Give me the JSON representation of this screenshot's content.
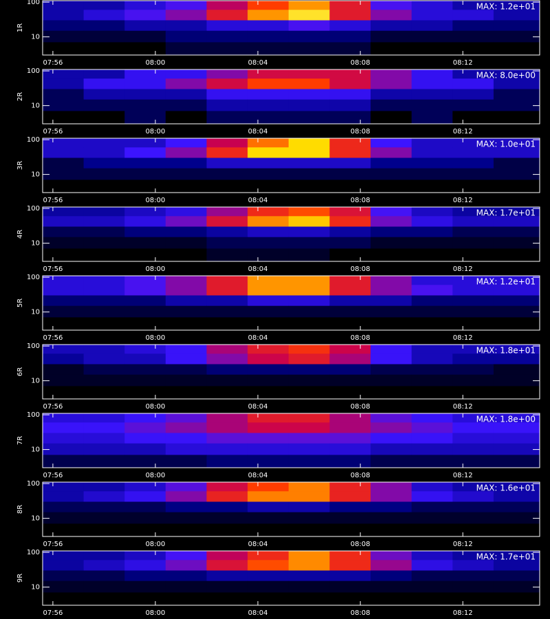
{
  "chart_data": [
    {
      "type": "heatmap",
      "ylabel": "1R",
      "zmax": 12,
      "zmax_label": "MAX: 1.2e+01",
      "log": true,
      "ylim": [
        3,
        110
      ],
      "yticks": [
        10,
        100
      ],
      "xlim": [
        475.6,
        495.0
      ],
      "xticks": [
        {
          "value": 476,
          "label": "07:56"
        },
        {
          "value": 480,
          "label": "08:00"
        },
        {
          "value": 484,
          "label": "08:04"
        },
        {
          "value": 488,
          "label": "08:08"
        },
        {
          "value": 492,
          "label": "08:12"
        }
      ],
      "x_bins": [
        475.6,
        477.2,
        478.8,
        480.4,
        482.0,
        483.6,
        485.2,
        486.8,
        488.4,
        490.0,
        491.6,
        493.2,
        495.0
      ],
      "y_bins": [
        110,
        60,
        30,
        15,
        7,
        3
      ],
      "z": [
        [
          3,
          3,
          4,
          5,
          7,
          9,
          10,
          8,
          5,
          4,
          3,
          3
        ],
        [
          3,
          4,
          5,
          6,
          8,
          10,
          11,
          8,
          6,
          4,
          4,
          3
        ],
        [
          2,
          2,
          3,
          3,
          4,
          4,
          5,
          4,
          3,
          3,
          2,
          2
        ],
        [
          1,
          1,
          1,
          2,
          2,
          2,
          2,
          2,
          1,
          1,
          1,
          1
        ],
        [
          0,
          0,
          0,
          1,
          1,
          1,
          1,
          1,
          0,
          0,
          0,
          0
        ]
      ]
    },
    {
      "type": "heatmap",
      "ylabel": "2R",
      "zmax": 8,
      "zmax_label": "MAX: 8.0e+00",
      "log": true,
      "ylim": [
        3,
        110
      ],
      "yticks": [
        10,
        100
      ],
      "xlim": [
        475.6,
        495.0
      ],
      "xticks": [
        {
          "value": 476,
          "label": "07:56"
        },
        {
          "value": 480,
          "label": "08:00"
        },
        {
          "value": 484,
          "label": "08:04"
        },
        {
          "value": 488,
          "label": "08:08"
        },
        {
          "value": 492,
          "label": "08:12"
        }
      ],
      "x_bins": [
        475.6,
        477.2,
        478.8,
        480.4,
        482.0,
        483.6,
        485.2,
        486.8,
        488.4,
        490.0,
        491.6,
        493.2,
        495.0
      ],
      "y_bins": [
        110,
        60,
        30,
        15,
        7,
        3
      ],
      "z": [
        [
          2,
          2,
          3,
          3,
          4,
          5,
          5,
          5,
          4,
          3,
          2,
          2
        ],
        [
          2,
          3,
          3,
          4,
          5,
          6,
          6,
          5,
          4,
          3,
          3,
          2
        ],
        [
          1,
          2,
          2,
          2,
          3,
          3,
          3,
          3,
          2,
          2,
          2,
          1
        ],
        [
          1,
          1,
          1,
          1,
          2,
          2,
          2,
          2,
          1,
          1,
          1,
          1
        ],
        [
          0,
          0,
          1,
          0,
          1,
          1,
          1,
          1,
          0,
          1,
          0,
          0
        ]
      ]
    },
    {
      "type": "heatmap",
      "ylabel": "3R",
      "zmax": 10,
      "zmax_label": "MAX: 1.0e+01",
      "log": true,
      "ylim": [
        3,
        110
      ],
      "yticks": [
        10,
        100
      ],
      "xlim": [
        475.6,
        495.0
      ],
      "xticks": [
        {
          "value": 476,
          "label": "07:56"
        },
        {
          "value": 480,
          "label": "08:00"
        },
        {
          "value": 484,
          "label": "08:04"
        },
        {
          "value": 488,
          "label": "08:08"
        },
        {
          "value": 492,
          "label": "08:12"
        }
      ],
      "x_bins": [
        475.6,
        477.2,
        478.8,
        480.4,
        482.0,
        483.6,
        485.2,
        486.8,
        488.4,
        490.0,
        491.6,
        493.2,
        495.0
      ],
      "y_bins": [
        110,
        60,
        30,
        15,
        7,
        3
      ],
      "z": [
        [
          3,
          3,
          3,
          4,
          6,
          8,
          9,
          7,
          4,
          3,
          3,
          3
        ],
        [
          3,
          3,
          4,
          5,
          7,
          9,
          9,
          7,
          5,
          3,
          3,
          3
        ],
        [
          1,
          2,
          2,
          2,
          3,
          3,
          3,
          3,
          2,
          2,
          2,
          1
        ],
        [
          1,
          1,
          1,
          1,
          1,
          1,
          1,
          1,
          1,
          1,
          1,
          1
        ],
        [
          0,
          0,
          0,
          0,
          0,
          0,
          0,
          0,
          0,
          0,
          0,
          0
        ]
      ]
    },
    {
      "type": "heatmap",
      "ylabel": "4R",
      "zmax": 17,
      "zmax_label": "MAX: 1.7e+01",
      "log": true,
      "ylim": [
        3,
        110
      ],
      "yticks": [
        10,
        100
      ],
      "xlim": [
        475.6,
        495.0
      ],
      "xticks": [
        {
          "value": 476,
          "label": "07:56"
        },
        {
          "value": 480,
          "label": "08:00"
        },
        {
          "value": 484,
          "label": "08:04"
        },
        {
          "value": 488,
          "label": "08:08"
        },
        {
          "value": 492,
          "label": "08:12"
        }
      ],
      "x_bins": [
        475.6,
        477.2,
        478.8,
        480.4,
        482.0,
        483.6,
        485.2,
        486.8,
        488.4,
        490.0,
        491.6,
        493.2,
        495.0
      ],
      "y_bins": [
        110,
        60,
        30,
        15,
        7,
        3
      ],
      "z": [
        [
          4,
          4,
          5,
          6,
          9,
          12,
          13,
          11,
          7,
          5,
          4,
          4
        ],
        [
          5,
          5,
          6,
          8,
          11,
          14,
          15,
          12,
          8,
          6,
          5,
          5
        ],
        [
          2,
          2,
          3,
          3,
          4,
          5,
          5,
          4,
          3,
          3,
          2,
          2
        ],
        [
          1,
          1,
          1,
          1,
          2,
          2,
          2,
          2,
          1,
          1,
          1,
          1
        ],
        [
          0,
          0,
          0,
          0,
          1,
          1,
          1,
          0,
          0,
          0,
          0,
          0
        ]
      ]
    },
    {
      "type": "heatmap",
      "ylabel": "5R",
      "zmax": 12,
      "zmax_label": "MAX: 1.2e+01",
      "log": true,
      "ylim": [
        3,
        110
      ],
      "yticks": [
        10,
        100
      ],
      "xlim": [
        475.6,
        495.0
      ],
      "xticks": [
        {
          "value": 476,
          "label": "07:56"
        },
        {
          "value": 480,
          "label": "08:00"
        },
        {
          "value": 484,
          "label": "08:04"
        },
        {
          "value": 488,
          "label": "08:08"
        },
        {
          "value": 492,
          "label": "08:12"
        }
      ],
      "x_bins": [
        475.6,
        477.2,
        478.8,
        480.4,
        482.0,
        483.6,
        485.2,
        486.8,
        488.4,
        490.0,
        491.6,
        493.2,
        495.0
      ],
      "y_bins": [
        110,
        60,
        30,
        15,
        7,
        3
      ],
      "z": [
        [
          4,
          4,
          5,
          6,
          8,
          10,
          10,
          8,
          6,
          4,
          4,
          4
        ],
        [
          4,
          4,
          5,
          6,
          8,
          10,
          10,
          8,
          6,
          5,
          4,
          4
        ],
        [
          2,
          2,
          2,
          3,
          3,
          4,
          4,
          3,
          3,
          2,
          2,
          2
        ],
        [
          1,
          1,
          1,
          1,
          1,
          1,
          1,
          1,
          1,
          1,
          1,
          1
        ],
        [
          0,
          0,
          0,
          0,
          0,
          0,
          0,
          0,
          0,
          0,
          0,
          0
        ]
      ]
    },
    {
      "type": "heatmap",
      "ylabel": "6R",
      "zmax": 18,
      "zmax_label": "MAX: 1.8e+01",
      "log": true,
      "ylim": [
        3,
        110
      ],
      "yticks": [
        10,
        100
      ],
      "xlim": [
        475.6,
        495.0
      ],
      "xticks": [
        {
          "value": 476,
          "label": "07:56"
        },
        {
          "value": 480,
          "label": "08:00"
        },
        {
          "value": 484,
          "label": "08:04"
        },
        {
          "value": 488,
          "label": "08:08"
        },
        {
          "value": 492,
          "label": "08:12"
        }
      ],
      "x_bins": [
        475.6,
        477.2,
        478.8,
        480.4,
        482.0,
        483.6,
        485.2,
        486.8,
        488.4,
        490.0,
        491.6,
        493.2,
        495.0
      ],
      "y_bins": [
        110,
        60,
        30,
        15,
        7,
        3
      ],
      "z": [
        [
          5,
          5,
          6,
          7,
          10,
          12,
          13,
          11,
          7,
          5,
          5,
          5
        ],
        [
          4,
          5,
          5,
          7,
          9,
          11,
          12,
          10,
          7,
          5,
          4,
          4
        ],
        [
          1,
          2,
          2,
          2,
          3,
          3,
          3,
          3,
          2,
          2,
          2,
          1
        ],
        [
          1,
          1,
          1,
          1,
          1,
          1,
          1,
          1,
          1,
          1,
          1,
          1
        ],
        [
          0,
          0,
          0,
          0,
          0,
          0,
          0,
          0,
          0,
          0,
          0,
          0
        ]
      ]
    },
    {
      "type": "heatmap",
      "ylabel": "7R",
      "zmax": 1.8,
      "zmax_label": "MAX: 1.8e+00",
      "log": true,
      "ylim": [
        3,
        110
      ],
      "yticks": [
        10,
        100
      ],
      "xlim": [
        475.6,
        495.0
      ],
      "xticks": [
        {
          "value": 476,
          "label": "07:56"
        },
        {
          "value": 480,
          "label": "08:00"
        },
        {
          "value": 484,
          "label": "08:04"
        },
        {
          "value": 488,
          "label": "08:08"
        },
        {
          "value": 492,
          "label": "08:12"
        }
      ],
      "x_bins": [
        475.6,
        477.2,
        478.8,
        480.4,
        482.0,
        483.6,
        485.2,
        486.8,
        488.4,
        490.0,
        491.6,
        493.2,
        495.0
      ],
      "y_bins": [
        110,
        60,
        30,
        15,
        7,
        3
      ],
      "z": [
        [
          0.6,
          0.6,
          0.7,
          0.8,
          1.0,
          1.2,
          1.2,
          1.0,
          0.8,
          0.7,
          0.6,
          0.6
        ],
        [
          0.7,
          0.7,
          0.8,
          0.9,
          1.0,
          1.1,
          1.1,
          1.0,
          0.9,
          0.8,
          0.7,
          0.7
        ],
        [
          0.6,
          0.6,
          0.7,
          0.7,
          0.8,
          0.8,
          0.8,
          0.8,
          0.7,
          0.7,
          0.6,
          0.6
        ],
        [
          0.5,
          0.5,
          0.5,
          0.6,
          0.6,
          0.6,
          0.6,
          0.6,
          0.5,
          0.5,
          0.5,
          0.5
        ],
        [
          0.2,
          0.2,
          0.2,
          0.2,
          0.3,
          0.3,
          0.3,
          0.3,
          0.2,
          0.2,
          0.2,
          0.2
        ]
      ]
    },
    {
      "type": "heatmap",
      "ylabel": "8R",
      "zmax": 16,
      "zmax_label": "MAX: 1.6e+01",
      "log": true,
      "ylim": [
        3,
        110
      ],
      "yticks": [
        10,
        100
      ],
      "xlim": [
        475.6,
        495.0
      ],
      "xticks": [
        {
          "value": 476,
          "label": "07:56"
        },
        {
          "value": 480,
          "label": "08:00"
        },
        {
          "value": 484,
          "label": "08:04"
        },
        {
          "value": 488,
          "label": "08:08"
        },
        {
          "value": 492,
          "label": "08:12"
        }
      ],
      "x_bins": [
        475.6,
        477.2,
        478.8,
        480.4,
        482.0,
        483.6,
        485.2,
        486.8,
        488.4,
        490.0,
        491.6,
        493.2,
        495.0
      ],
      "y_bins": [
        110,
        60,
        30,
        15,
        7,
        3
      ],
      "z": [
        [
          4,
          4,
          5,
          7,
          10,
          12,
          13,
          11,
          8,
          5,
          4,
          4
        ],
        [
          4,
          5,
          6,
          8,
          11,
          13,
          13,
          11,
          8,
          6,
          5,
          4
        ],
        [
          2,
          2,
          2,
          3,
          3,
          4,
          4,
          3,
          3,
          2,
          2,
          2
        ],
        [
          1,
          1,
          1,
          1,
          1,
          1,
          1,
          1,
          1,
          1,
          1,
          1
        ],
        [
          0,
          0,
          0,
          0,
          0,
          0,
          0,
          0,
          0,
          0,
          0,
          0
        ]
      ]
    },
    {
      "type": "heatmap",
      "ylabel": "9R",
      "zmax": 17,
      "zmax_label": "MAX: 1.7e+01",
      "log": true,
      "ylim": [
        3,
        110
      ],
      "yticks": [
        10,
        100
      ],
      "xlim": [
        475.6,
        495.0
      ],
      "xticks": [
        {
          "value": 476,
          "label": "07:56"
        },
        {
          "value": 480,
          "label": "08:00"
        },
        {
          "value": 484,
          "label": "08:04"
        },
        {
          "value": 488,
          "label": "08:08"
        },
        {
          "value": 492,
          "label": "08:12"
        }
      ],
      "x_bins": [
        475.6,
        477.2,
        478.8,
        480.4,
        482.0,
        483.6,
        485.2,
        486.8,
        488.4,
        490.0,
        491.6,
        493.2,
        495.0
      ],
      "y_bins": [
        110,
        60,
        30,
        15,
        7,
        3
      ],
      "z": [
        [
          4,
          4,
          5,
          7,
          10,
          12,
          14,
          12,
          8,
          5,
          4,
          4
        ],
        [
          4,
          5,
          6,
          8,
          11,
          13,
          14,
          12,
          9,
          6,
          5,
          4
        ],
        [
          2,
          2,
          3,
          3,
          4,
          4,
          4,
          4,
          3,
          2,
          2,
          2
        ],
        [
          1,
          1,
          1,
          1,
          1,
          1,
          1,
          1,
          1,
          1,
          1,
          1
        ],
        [
          0,
          0,
          0,
          0,
          0,
          0,
          0,
          0,
          0,
          0,
          0,
          0
        ]
      ]
    }
  ]
}
